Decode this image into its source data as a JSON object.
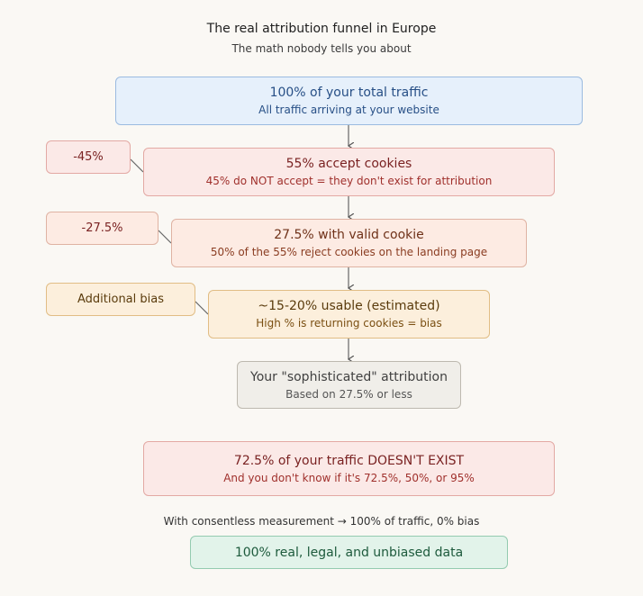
{
  "header": {
    "title": "The real attribution funnel in Europe",
    "subtitle": "The math nobody tells you about"
  },
  "funnel": [
    {
      "main": "100% of your total traffic",
      "sub": "All traffic arriving at your website",
      "color": "#e6f0fb"
    },
    {
      "main": "55% accept cookies",
      "sub": "45% do NOT accept = they don't exist for attribution",
      "color": "#fbe9e7"
    },
    {
      "main": "27.5% with valid cookie",
      "sub": "50% of the 55% reject cookies on the landing page",
      "color": "#fdebe3"
    },
    {
      "main": "~15-20% usable (estimated)",
      "sub": "High % is returning cookies = bias",
      "color": "#fcefdc"
    },
    {
      "main": "Your \"sophisticated\" attribution",
      "sub": "Based on 27.5% or less",
      "color": "#f0eee9"
    }
  ],
  "side_notes": [
    {
      "label": "-45%"
    },
    {
      "label": "-27.5%"
    },
    {
      "label": "Additional bias"
    }
  ],
  "warning": {
    "main": "72.5% of your traffic DOESN'T EXIST",
    "sub": "And you don't know if it's 72.5%, 50%, or 95%"
  },
  "solution": {
    "note": "With consentless measurement → 100% of traffic, 0% bias",
    "result": "100% real, legal, and unbiased data"
  }
}
